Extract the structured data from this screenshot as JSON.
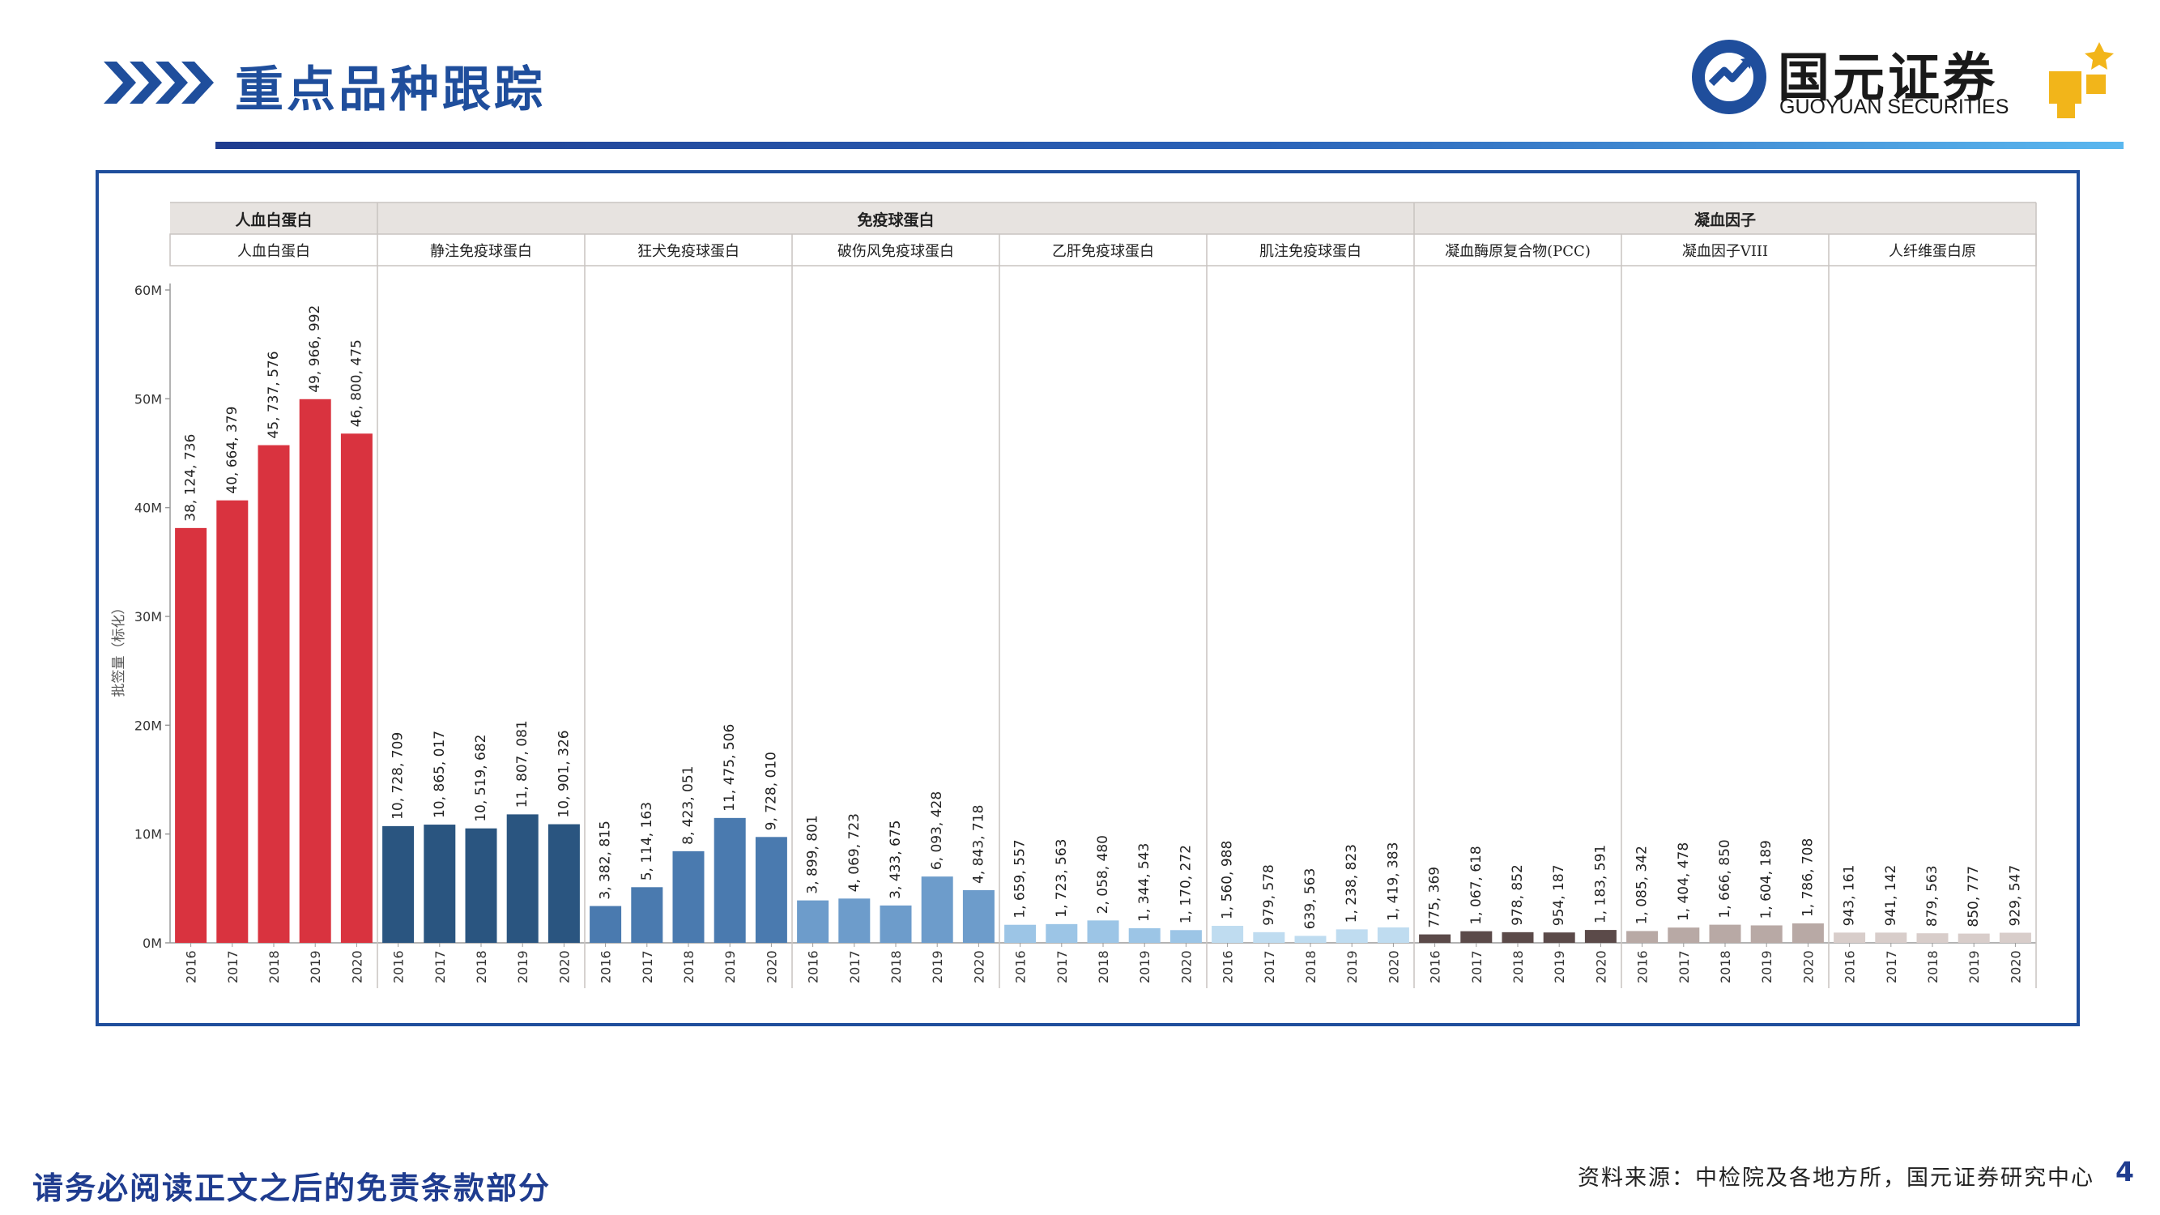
{
  "header": {
    "title": "重点品种跟踪",
    "logo_cn": "国元证券",
    "logo_en": "GUOYUAN SECURITIES",
    "brand_color": "#1f4e9c"
  },
  "footer": {
    "disclaimer": "请务必阅读正文之后的免责条款部分",
    "source": "资料来源：中检院及各地方所，国元证券研究中心",
    "page_number": "4"
  },
  "chart_data": {
    "type": "bar",
    "ylabel": "批签量（标化）",
    "ylim": [
      0,
      60000000
    ],
    "yticks": [
      {
        "value": 0,
        "label": "0M"
      },
      {
        "value": 10000000,
        "label": "10M"
      },
      {
        "value": 20000000,
        "label": "20M"
      },
      {
        "value": 30000000,
        "label": "30M"
      },
      {
        "value": 40000000,
        "label": "40M"
      },
      {
        "value": 50000000,
        "label": "50M"
      },
      {
        "value": 60000000,
        "label": "60M"
      }
    ],
    "grid": false,
    "legend": "none",
    "years": [
      "2016",
      "2017",
      "2018",
      "2019",
      "2020"
    ],
    "groups": [
      {
        "name": "人血白蛋白",
        "span": 1
      },
      {
        "name": "免疫球蛋白",
        "span": 5
      },
      {
        "name": "凝血因子",
        "span": 3
      }
    ],
    "series": [
      {
        "name": "人血白蛋白",
        "color": "#d9333f",
        "values": [
          38124736,
          40664379,
          45737576,
          49966992,
          46800475
        ],
        "labels": [
          "38, 124, 736",
          "40, 664, 379",
          "45, 737, 576",
          "49, 966, 992",
          "46, 800, 475"
        ]
      },
      {
        "name": "静注免疫球蛋白",
        "color": "#2a5580",
        "values": [
          10728709,
          10865017,
          10519682,
          11807081,
          10901326
        ],
        "labels": [
          "10, 728, 709",
          "10, 865, 017",
          "10, 519, 682",
          "11, 807, 081",
          "10, 901, 326"
        ]
      },
      {
        "name": "狂犬免疫球蛋白",
        "color": "#4a7aaf",
        "values": [
          3382815,
          5114163,
          8423051,
          11475506,
          9728010
        ],
        "labels": [
          "3, 382, 815",
          "5, 114, 163",
          "8, 423, 051",
          "11, 475, 506",
          "9, 728, 010"
        ]
      },
      {
        "name": "破伤风免疫球蛋白",
        "color": "#6d9ccb",
        "values": [
          3899801,
          4069723,
          3433675,
          6093428,
          4843718
        ],
        "labels": [
          "3, 899, 801",
          "4, 069, 723",
          "3, 433, 675",
          "6, 093, 428",
          "4, 843, 718"
        ]
      },
      {
        "name": "乙肝免疫球蛋白",
        "color": "#9cc5e6",
        "values": [
          1659557,
          1723563,
          2058480,
          1344543,
          1170272
        ],
        "labels": [
          "1, 659, 557",
          "1, 723, 563",
          "2, 058, 480",
          "1, 344, 543",
          "1, 170, 272"
        ]
      },
      {
        "name": "肌注免疫球蛋白",
        "color": "#bfdcf0",
        "values": [
          1560988,
          979578,
          639563,
          1238823,
          1419383
        ],
        "labels": [
          "1, 560, 988",
          "979, 578",
          "639, 563",
          "1, 238, 823",
          "1, 419, 383"
        ]
      },
      {
        "name": "凝血酶原复合物(PCC)",
        "color": "#5b4a49",
        "values": [
          775369,
          1067618,
          978852,
          954187,
          1183591
        ],
        "labels": [
          "775, 369",
          "1, 067, 618",
          "978, 852",
          "954, 187",
          "1, 183, 591"
        ]
      },
      {
        "name": "凝血因子VIII",
        "color": "#b8a9a5",
        "values": [
          1085342,
          1404478,
          1666850,
          1604189,
          1786708
        ],
        "labels": [
          "1, 085, 342",
          "1, 404, 478",
          "1, 666, 850",
          "1, 604, 189",
          "1, 786, 708"
        ]
      },
      {
        "name": "人纤维蛋白原",
        "color": "#d8cdca",
        "values": [
          943161,
          941142,
          879563,
          850777,
          929547
        ],
        "labels": [
          "943, 161",
          "941, 142",
          "879, 563",
          "850, 777",
          "929, 547"
        ]
      }
    ]
  }
}
